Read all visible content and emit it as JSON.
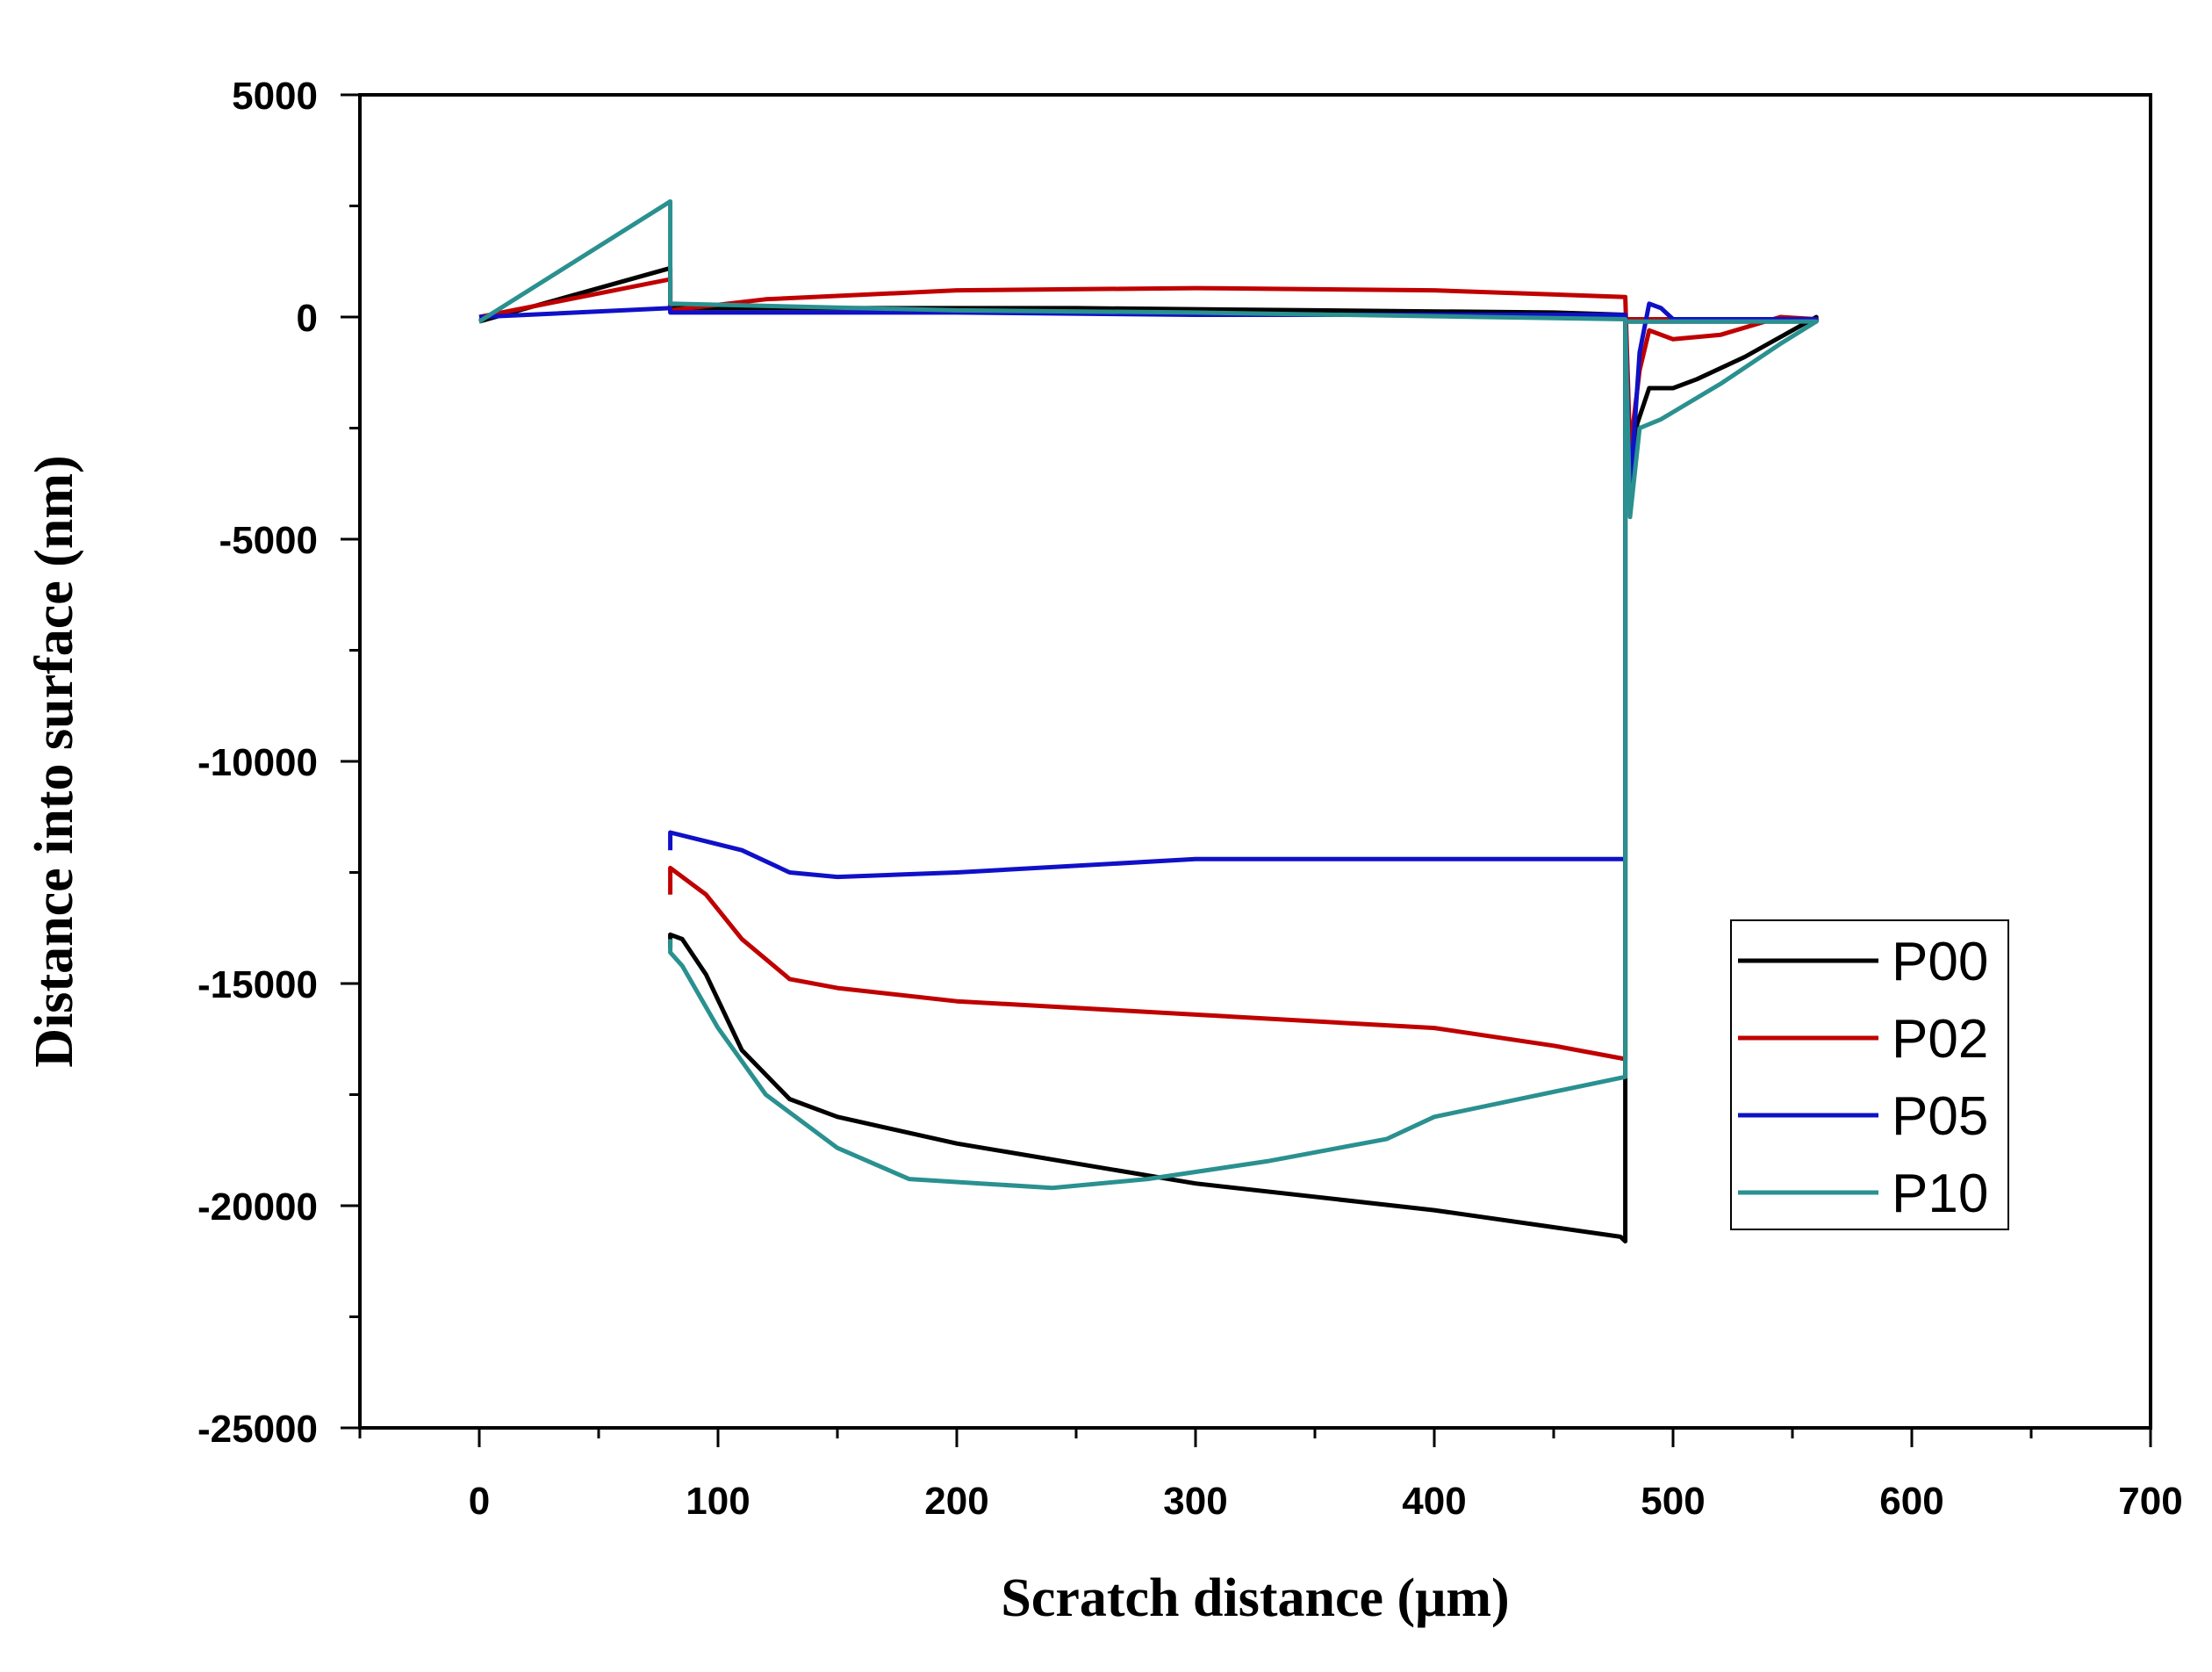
{
  "chart_data": {
    "type": "line",
    "title": "",
    "xlabel": "Scratch distance (μm)",
    "ylabel": "Distance into surface (nm)",
    "xlim": [
      -50,
      700
    ],
    "ylim": [
      -25000,
      5000
    ],
    "xticks": [
      0,
      100,
      200,
      300,
      400,
      500,
      600,
      700
    ],
    "yticks": [
      5000,
      0,
      -5000,
      -10000,
      -15000,
      -20000,
      -25000
    ],
    "xtick_labels": [
      "0",
      "100",
      "200",
      "300",
      "400",
      "500",
      "600",
      "700"
    ],
    "ytick_labels": [
      "5000",
      "0",
      "-5000",
      "-10000",
      "-15000",
      "-20000",
      "-25000"
    ],
    "grid": false,
    "legend_position": "right",
    "series": [
      {
        "name": "P00",
        "color": "#000000",
        "points": [
          [
            0,
            -100
          ],
          [
            80,
            1100
          ],
          [
            80,
            200
          ],
          [
            150,
            200
          ],
          [
            250,
            200
          ],
          [
            350,
            150
          ],
          [
            450,
            100
          ],
          [
            480,
            50
          ],
          [
            482,
            -4000
          ],
          [
            485,
            -2400
          ],
          [
            490,
            -1600
          ],
          [
            500,
            -1600
          ],
          [
            510,
            -1400
          ],
          [
            530,
            -900
          ],
          [
            560,
            0
          ],
          [
            560,
            -100
          ],
          [
            480,
            -100
          ],
          [
            480,
            -17000
          ],
          [
            480,
            -20800
          ],
          [
            478,
            -20700
          ],
          [
            400,
            -20100
          ],
          [
            300,
            -19500
          ],
          [
            200,
            -18600
          ],
          [
            150,
            -18000
          ],
          [
            130,
            -17600
          ],
          [
            110,
            -16500
          ],
          [
            95,
            -14800
          ],
          [
            85,
            -14000
          ],
          [
            80,
            -13900
          ],
          [
            80,
            -14200
          ]
        ]
      },
      {
        "name": "P02",
        "color": "#c00000",
        "points": [
          [
            0,
            0
          ],
          [
            80,
            850
          ],
          [
            80,
            150
          ],
          [
            120,
            400
          ],
          [
            200,
            600
          ],
          [
            300,
            650
          ],
          [
            400,
            600
          ],
          [
            480,
            450
          ],
          [
            482,
            -3000
          ],
          [
            486,
            -1200
          ],
          [
            490,
            -300
          ],
          [
            500,
            -500
          ],
          [
            520,
            -400
          ],
          [
            545,
            0
          ],
          [
            560,
            -50
          ],
          [
            480,
            -50
          ],
          [
            480,
            -16700
          ],
          [
            450,
            -16400
          ],
          [
            400,
            -16000
          ],
          [
            300,
            -15700
          ],
          [
            200,
            -15400
          ],
          [
            150,
            -15100
          ],
          [
            130,
            -14900
          ],
          [
            110,
            -14000
          ],
          [
            95,
            -13000
          ],
          [
            80,
            -12400
          ],
          [
            80,
            -13000
          ]
        ]
      },
      {
        "name": "P05",
        "color": "#1010c8",
        "points": [
          [
            0,
            0
          ],
          [
            80,
            200
          ],
          [
            80,
            100
          ],
          [
            200,
            100
          ],
          [
            300,
            50
          ],
          [
            400,
            50
          ],
          [
            480,
            50
          ],
          [
            482,
            -4000
          ],
          [
            486,
            -800
          ],
          [
            490,
            300
          ],
          [
            495,
            200
          ],
          [
            500,
            -50
          ],
          [
            560,
            -50
          ],
          [
            560,
            -100
          ],
          [
            480,
            -100
          ],
          [
            480,
            -12200
          ],
          [
            400,
            -12200
          ],
          [
            300,
            -12200
          ],
          [
            200,
            -12500
          ],
          [
            150,
            -12600
          ],
          [
            130,
            -12500
          ],
          [
            110,
            -12000
          ],
          [
            95,
            -11800
          ],
          [
            80,
            -11600
          ],
          [
            80,
            -12000
          ]
        ]
      },
      {
        "name": "P10",
        "color": "#2a9090",
        "points": [
          [
            0,
            -100
          ],
          [
            80,
            2600
          ],
          [
            80,
            300
          ],
          [
            200,
            150
          ],
          [
            300,
            100
          ],
          [
            420,
            0
          ],
          [
            480,
            -50
          ],
          [
            482,
            -4500
          ],
          [
            486,
            -2500
          ],
          [
            495,
            -2300
          ],
          [
            520,
            -1500
          ],
          [
            545,
            -600
          ],
          [
            560,
            -100
          ],
          [
            480,
            -100
          ],
          [
            480,
            -17100
          ],
          [
            400,
            -18000
          ],
          [
            380,
            -18500
          ],
          [
            330,
            -19000
          ],
          [
            280,
            -19400
          ],
          [
            240,
            -19600
          ],
          [
            210,
            -19500
          ],
          [
            180,
            -19400
          ],
          [
            150,
            -18700
          ],
          [
            120,
            -17500
          ],
          [
            100,
            -16000
          ],
          [
            85,
            -14600
          ],
          [
            80,
            -14300
          ],
          [
            80,
            -14000
          ]
        ]
      }
    ]
  }
}
